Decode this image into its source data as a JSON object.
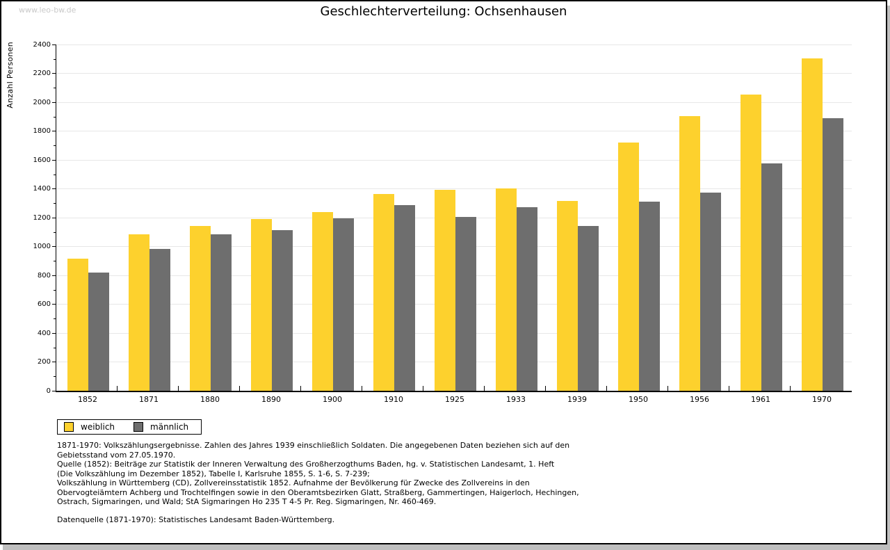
{
  "page": {
    "watermark": "www.leo-bw.de",
    "title": "Geschlechterverteilung: Ochsenhausen"
  },
  "chart_data": {
    "type": "bar",
    "title": "Geschlechterverteilung: Ochsenhausen",
    "xlabel": "",
    "ylabel": "Anzahl Personen",
    "ylim": [
      0,
      2400
    ],
    "ytick_step": 200,
    "yminor_step": 100,
    "grid": true,
    "legend_position": "bottom-left",
    "categories": [
      "1852",
      "1871",
      "1880",
      "1890",
      "1900",
      "1910",
      "1925",
      "1933",
      "1939",
      "1950",
      "1956",
      "1961",
      "1970"
    ],
    "series": [
      {
        "name": "weiblich",
        "color": "#fdd12d",
        "values": [
          915,
          1085,
          1140,
          1190,
          1240,
          1365,
          1395,
          1400,
          1315,
          1720,
          1905,
          2055,
          2305
        ]
      },
      {
        "name": "männlich",
        "color": "#6e6e6e",
        "values": [
          820,
          985,
          1085,
          1115,
          1195,
          1285,
          1205,
          1270,
          1140,
          1310,
          1375,
          1575,
          1890
        ]
      }
    ]
  },
  "footnotes": {
    "lines": [
      "1871-1970: Volkszählungsergebnisse. Zahlen des Jahres 1939 einschließlich Soldaten. Die angegebenen Daten beziehen sich auf den",
      "Gebietsstand vom 27.05.1970.",
      "Quelle (1852): Beiträge zur Statistik der Inneren Verwaltung des Großherzogthums Baden, hg. v. Statistischen Landesamt, 1. Heft",
      "(Die Volkszählung im Dezember 1852), Tabelle I, Karlsruhe 1855, S. 1-6, S. 7-239;",
      "Volkszählung in Württemberg (CD), Zollvereinsstatistik 1852. Aufnahme der Bevölkerung für Zwecke des Zollvereins in den",
      "Obervogteiämtern Achberg und Trochtelfingen sowie in den Oberamtsbezirken Glatt, Straßberg, Gammertingen, Haigerloch, Hechingen,",
      "Ostrach, Sigmaringen, und Wald; StA Sigmaringen Ho 235 T 4-5 Pr. Reg. Sigmaringen, Nr. 460-469."
    ],
    "datasource": "Datenquelle (1871-1970): Statistisches Landesamt Baden-Württemberg."
  },
  "colors": {
    "grid": "#e7e7e7",
    "axis": "#000000",
    "watermark": "#c9c9c9",
    "frame_shadow": "#bfbfbf",
    "background": "#ffffff"
  }
}
